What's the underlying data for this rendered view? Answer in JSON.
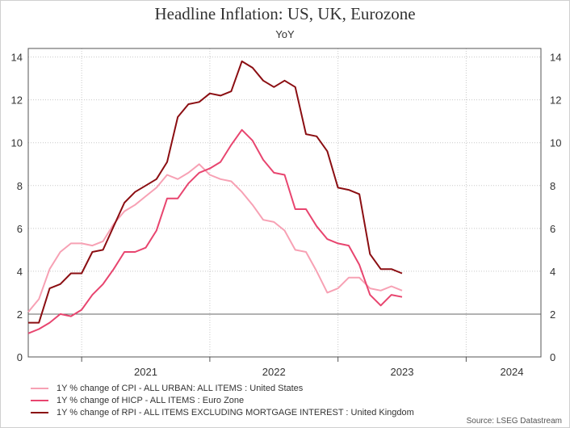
{
  "chart_data": {
    "type": "line",
    "title": "Headline Inflation: US, UK, Eurozone",
    "subtitle": "YoY",
    "source": "Source: LSEG Datastream",
    "x_tick_labels": [
      "2021",
      "2022",
      "2023",
      "2024"
    ],
    "y_ticks": [
      0,
      2,
      4,
      6,
      8,
      10,
      12,
      14
    ],
    "ylim": [
      0,
      14.4
    ],
    "x_start": "2020-08",
    "x_end": "2024-08",
    "reference_line": 2,
    "grid": true,
    "legend_position": "bottom-left",
    "series": [
      {
        "name": "1Y % change of CPI - ALL URBAN: ALL ITEMS : United States",
        "color": "#f7a1b4",
        "x": [
          "2020-08",
          "2020-09",
          "2020-10",
          "2020-11",
          "2020-12",
          "2021-01",
          "2021-02",
          "2021-03",
          "2021-04",
          "2021-05",
          "2021-06",
          "2021-07",
          "2021-08",
          "2021-09",
          "2021-10",
          "2021-11",
          "2021-12",
          "2022-01",
          "2022-02",
          "2022-03",
          "2022-04",
          "2022-05",
          "2022-06",
          "2022-07",
          "2022-08",
          "2022-09",
          "2022-10",
          "2022-11",
          "2022-12",
          "2023-01",
          "2023-02",
          "2023-03",
          "2023-04",
          "2023-05",
          "2023-06",
          "2023-07",
          "2023-08",
          "2023-09",
          "2023-10",
          "2023-11",
          "2023-12"
        ],
        "values": [
          2.1,
          2.7,
          4.1,
          4.9,
          5.3,
          5.3,
          5.2,
          5.4,
          6.2,
          6.8,
          7.1,
          7.5,
          7.9,
          8.5,
          8.3,
          8.6,
          9.0,
          8.5,
          8.3,
          8.2,
          7.7,
          7.1,
          6.4,
          6.3,
          5.9,
          5.0,
          4.9,
          4.0,
          3.0,
          3.2,
          3.7,
          3.7,
          3.2,
          3.1,
          3.3,
          3.1,
          null,
          null,
          null,
          null,
          null
        ]
      },
      {
        "name": "1Y % change of HICP - ALL ITEMS : Euro Zone",
        "color": "#e8456f",
        "x": [
          "2020-08",
          "2020-09",
          "2020-10",
          "2020-11",
          "2020-12",
          "2021-01",
          "2021-02",
          "2021-03",
          "2021-04",
          "2021-05",
          "2021-06",
          "2021-07",
          "2021-08",
          "2021-09",
          "2021-10",
          "2021-11",
          "2021-12",
          "2022-01",
          "2022-02",
          "2022-03",
          "2022-04",
          "2022-05",
          "2022-06",
          "2022-07",
          "2022-08",
          "2022-09",
          "2022-10",
          "2022-11",
          "2022-12",
          "2023-01",
          "2023-02",
          "2023-03",
          "2023-04",
          "2023-05",
          "2023-06",
          "2023-07",
          "2023-08",
          "2023-09",
          "2023-10",
          "2023-11",
          "2023-12"
        ],
        "values": [
          1.1,
          1.3,
          1.6,
          2.0,
          1.9,
          2.2,
          2.9,
          3.4,
          4.1,
          4.9,
          4.9,
          5.1,
          5.9,
          7.4,
          7.4,
          8.1,
          8.6,
          8.8,
          9.1,
          9.9,
          10.6,
          10.1,
          9.2,
          8.6,
          8.5,
          6.9,
          6.9,
          6.1,
          5.5,
          5.3,
          5.2,
          4.3,
          2.9,
          2.4,
          2.9,
          2.8,
          null,
          null,
          null,
          null,
          null
        ]
      },
      {
        "name": "1Y % change of RPI - ALL ITEMS EXCLUDING MORTGAGE INTEREST : United Kingdom",
        "color": "#8b0e12",
        "x": [
          "2020-08",
          "2020-09",
          "2020-10",
          "2020-11",
          "2020-12",
          "2021-01",
          "2021-02",
          "2021-03",
          "2021-04",
          "2021-05",
          "2021-06",
          "2021-07",
          "2021-08",
          "2021-09",
          "2021-10",
          "2021-11",
          "2021-12",
          "2022-01",
          "2022-02",
          "2022-03",
          "2022-04",
          "2022-05",
          "2022-06",
          "2022-07",
          "2022-08",
          "2022-09",
          "2022-10",
          "2022-11",
          "2022-12",
          "2023-01",
          "2023-02",
          "2023-03",
          "2023-04",
          "2023-05",
          "2023-06",
          "2023-07",
          "2023-08",
          "2023-09",
          "2023-10",
          "2023-11",
          "2023-12"
        ],
        "values": [
          1.6,
          1.6,
          3.2,
          3.4,
          3.9,
          3.9,
          4.9,
          5.0,
          6.1,
          7.2,
          7.7,
          8.0,
          8.3,
          9.1,
          11.2,
          11.8,
          11.9,
          12.3,
          12.2,
          12.4,
          13.8,
          13.5,
          12.9,
          12.6,
          12.9,
          12.6,
          10.4,
          10.3,
          9.6,
          7.9,
          7.8,
          7.6,
          4.8,
          4.1,
          4.1,
          3.9,
          null,
          null,
          null,
          null,
          null
        ]
      }
    ]
  }
}
